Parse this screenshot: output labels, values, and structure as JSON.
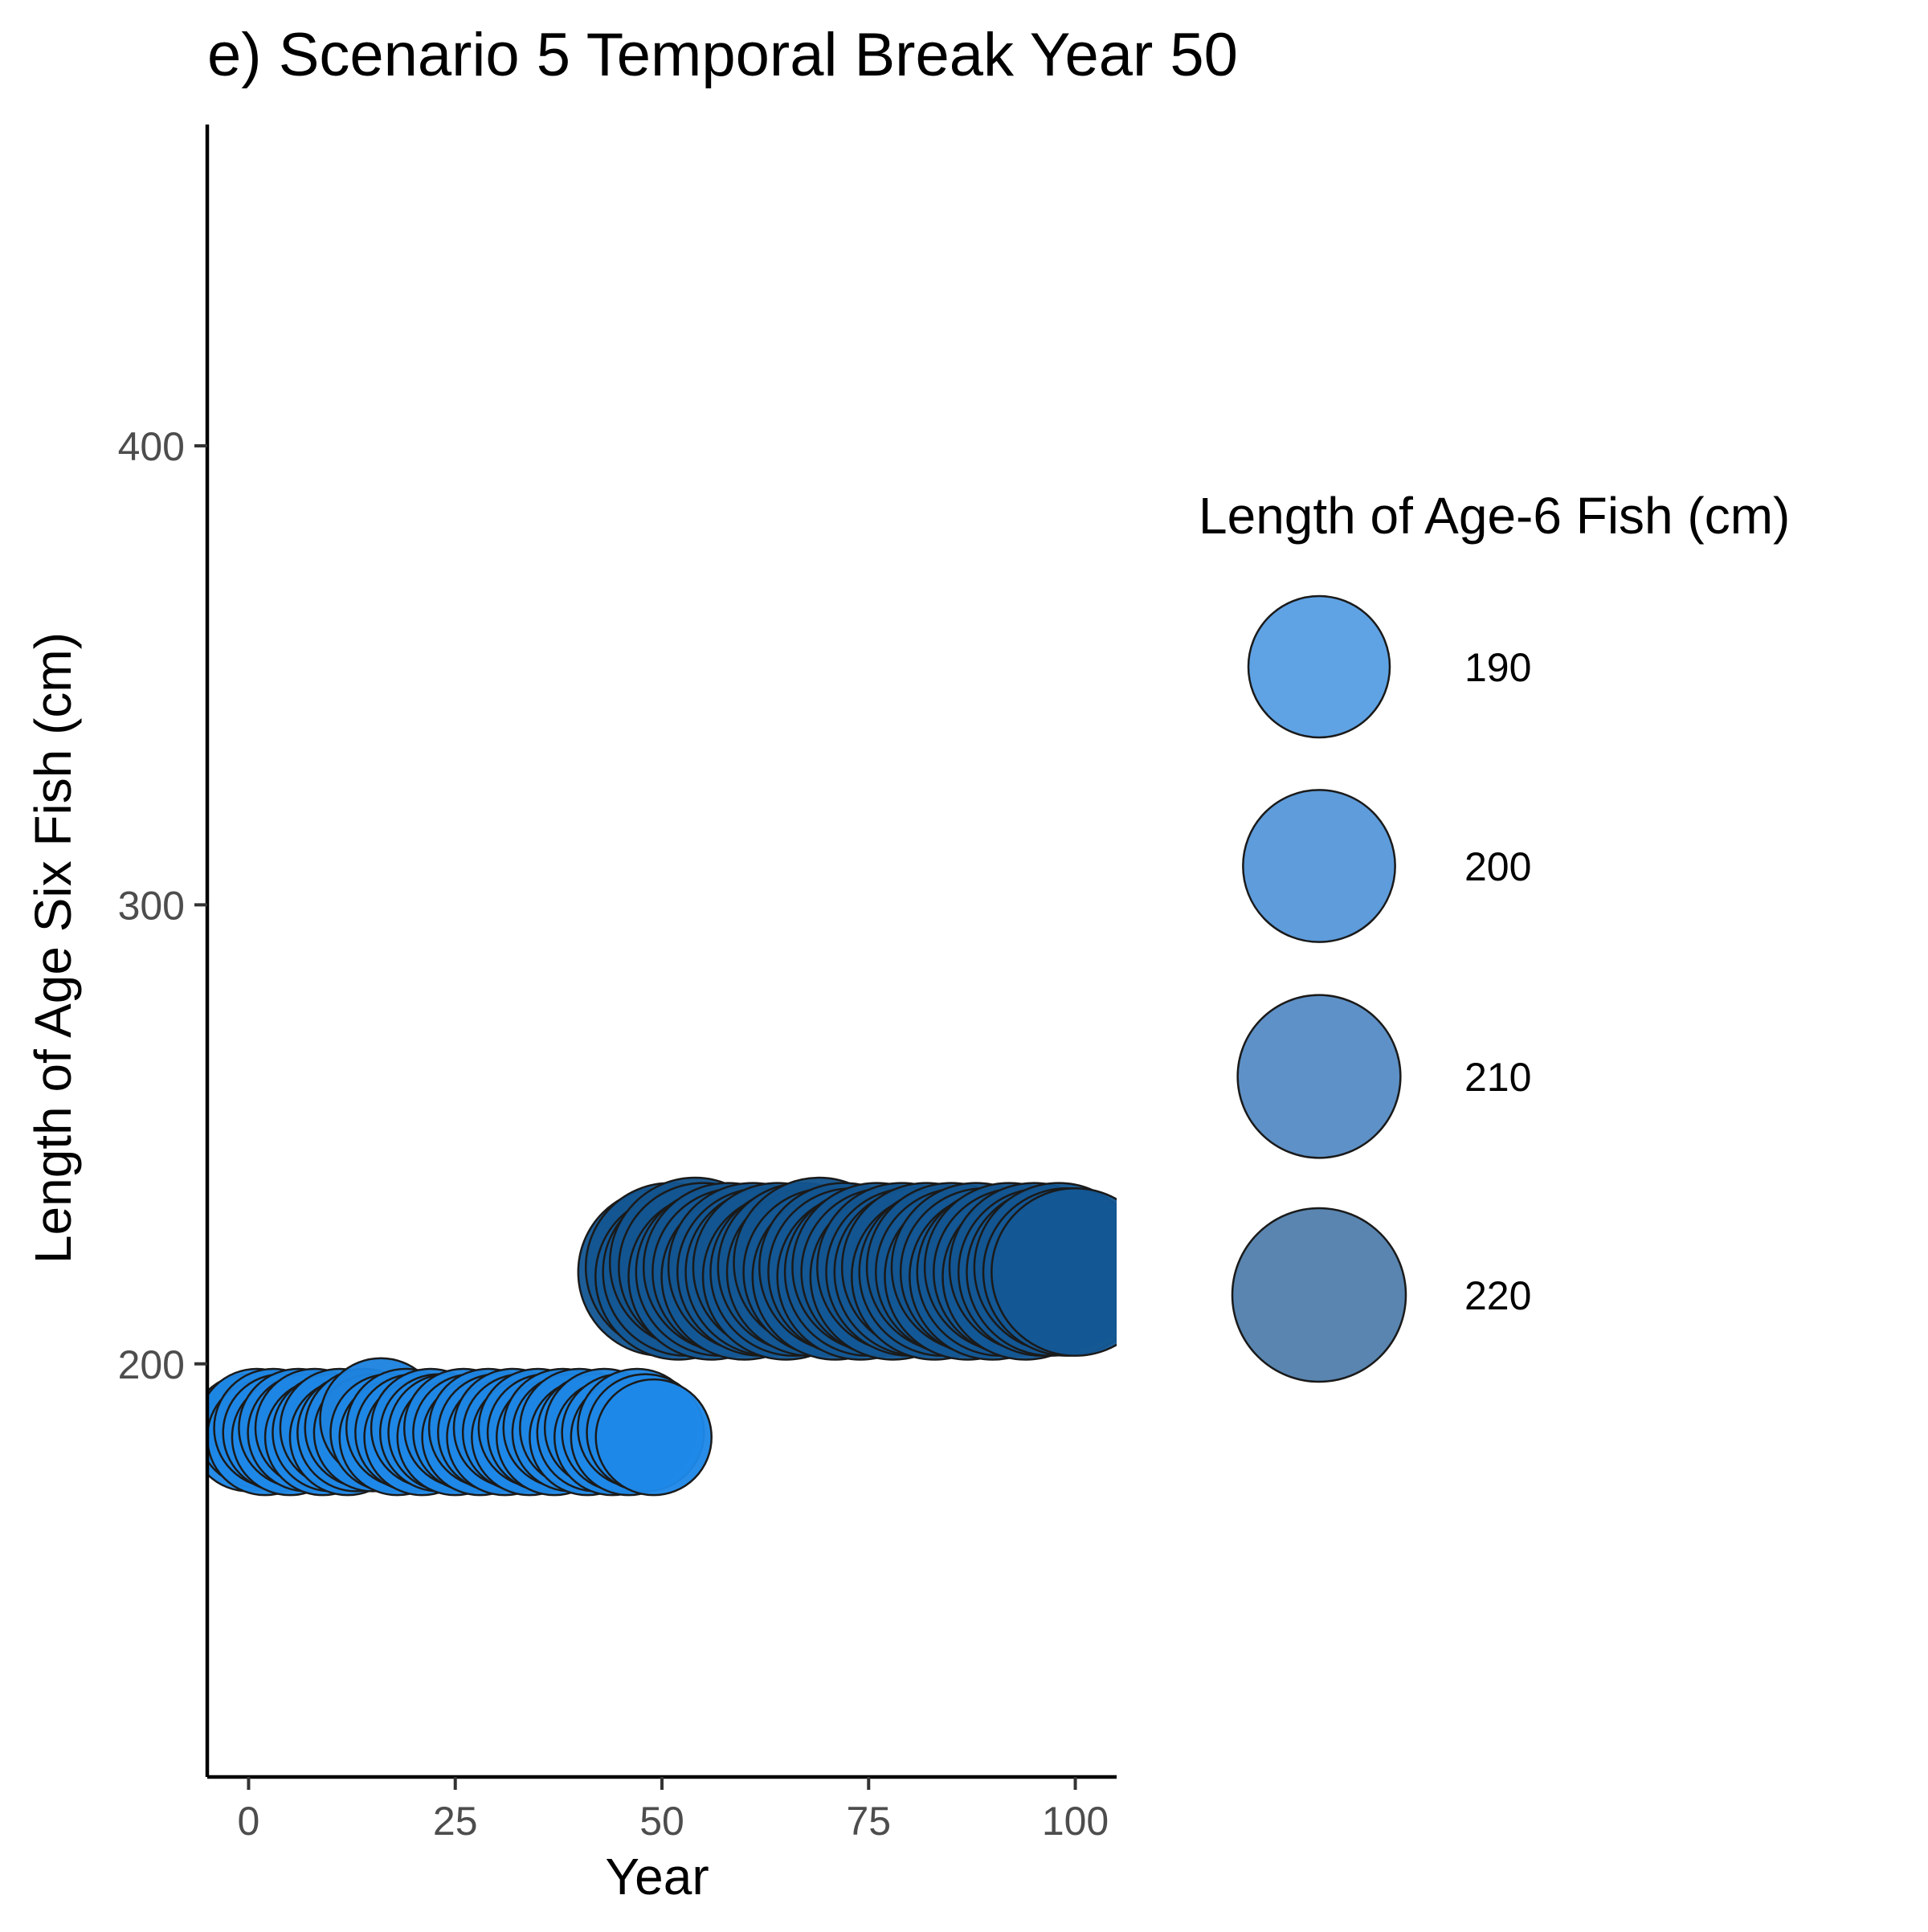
{
  "chart_data": {
    "type": "scatter",
    "title": "e) Scenario 5 Temporal Break Year 50",
    "xlabel": "Year",
    "ylabel": "Length of Age Six Fish (cm)",
    "xlim": [
      -5,
      105
    ],
    "ylim": [
      110,
      470
    ],
    "x_ticks": [
      0,
      25,
      50,
      75,
      100
    ],
    "y_ticks": [
      200,
      300,
      400
    ],
    "grid": false,
    "point_style": {
      "fill_low": "#1E88E8",
      "fill_high": "#13548F",
      "stroke": "#1a1a1a"
    },
    "size_legend": {
      "title": "Length of Age-6 Fish (cm)",
      "placement": "right",
      "entries": [
        {
          "label": "190",
          "value": 190,
          "color": "#5FA3E5"
        },
        {
          "label": "200",
          "value": 200,
          "color": "#5E9CDB"
        },
        {
          "label": "210",
          "value": 210,
          "color": "#5E91C7"
        },
        {
          "label": "220",
          "value": 220,
          "color": "#5985B0"
        }
      ]
    },
    "series": [
      {
        "x": [
          0,
          1,
          2,
          3,
          4,
          5,
          6,
          7,
          8,
          9,
          10,
          11,
          12,
          13,
          14,
          15,
          16,
          17,
          18,
          19,
          20,
          21,
          22,
          23,
          24,
          25,
          26,
          27,
          28,
          29,
          30,
          31,
          32,
          33,
          34,
          35,
          36,
          37,
          38,
          39,
          40,
          41,
          42,
          43,
          44,
          45,
          46,
          47,
          48,
          49
        ],
        "y": [
          185,
          186,
          184,
          186,
          185,
          184,
          186,
          185,
          186,
          184,
          185,
          186,
          184,
          185,
          186,
          185,
          188,
          185,
          184,
          186,
          185,
          184,
          186,
          185,
          185,
          184,
          186,
          185,
          184,
          186,
          185,
          184,
          186,
          185,
          184,
          186,
          185,
          184,
          186,
          185,
          186,
          184,
          185,
          186,
          184,
          185,
          184,
          186,
          185,
          184
        ]
      },
      {
        "x": [
          50,
          51,
          52,
          53,
          54,
          55,
          56,
          57,
          58,
          59,
          60,
          61,
          62,
          63,
          64,
          65,
          66,
          67,
          68,
          69,
          70,
          71,
          72,
          73,
          74,
          75,
          76,
          77,
          78,
          79,
          80,
          81,
          82,
          83,
          84,
          85,
          86,
          87,
          88,
          89,
          90,
          91,
          92,
          93,
          94,
          95,
          96,
          97,
          98,
          99,
          100
        ],
        "y": [
          220,
          221,
          219,
          220,
          222,
          221,
          219,
          220,
          221,
          220,
          219,
          221,
          220,
          220,
          221,
          219,
          220,
          221,
          220,
          222,
          220,
          219,
          221,
          220,
          219,
          220,
          221,
          220,
          219,
          221,
          220,
          220,
          221,
          219,
          220,
          221,
          220,
          219,
          221,
          220,
          219,
          220,
          221,
          220,
          219,
          221,
          220,
          220,
          221,
          220,
          220
        ]
      }
    ]
  }
}
